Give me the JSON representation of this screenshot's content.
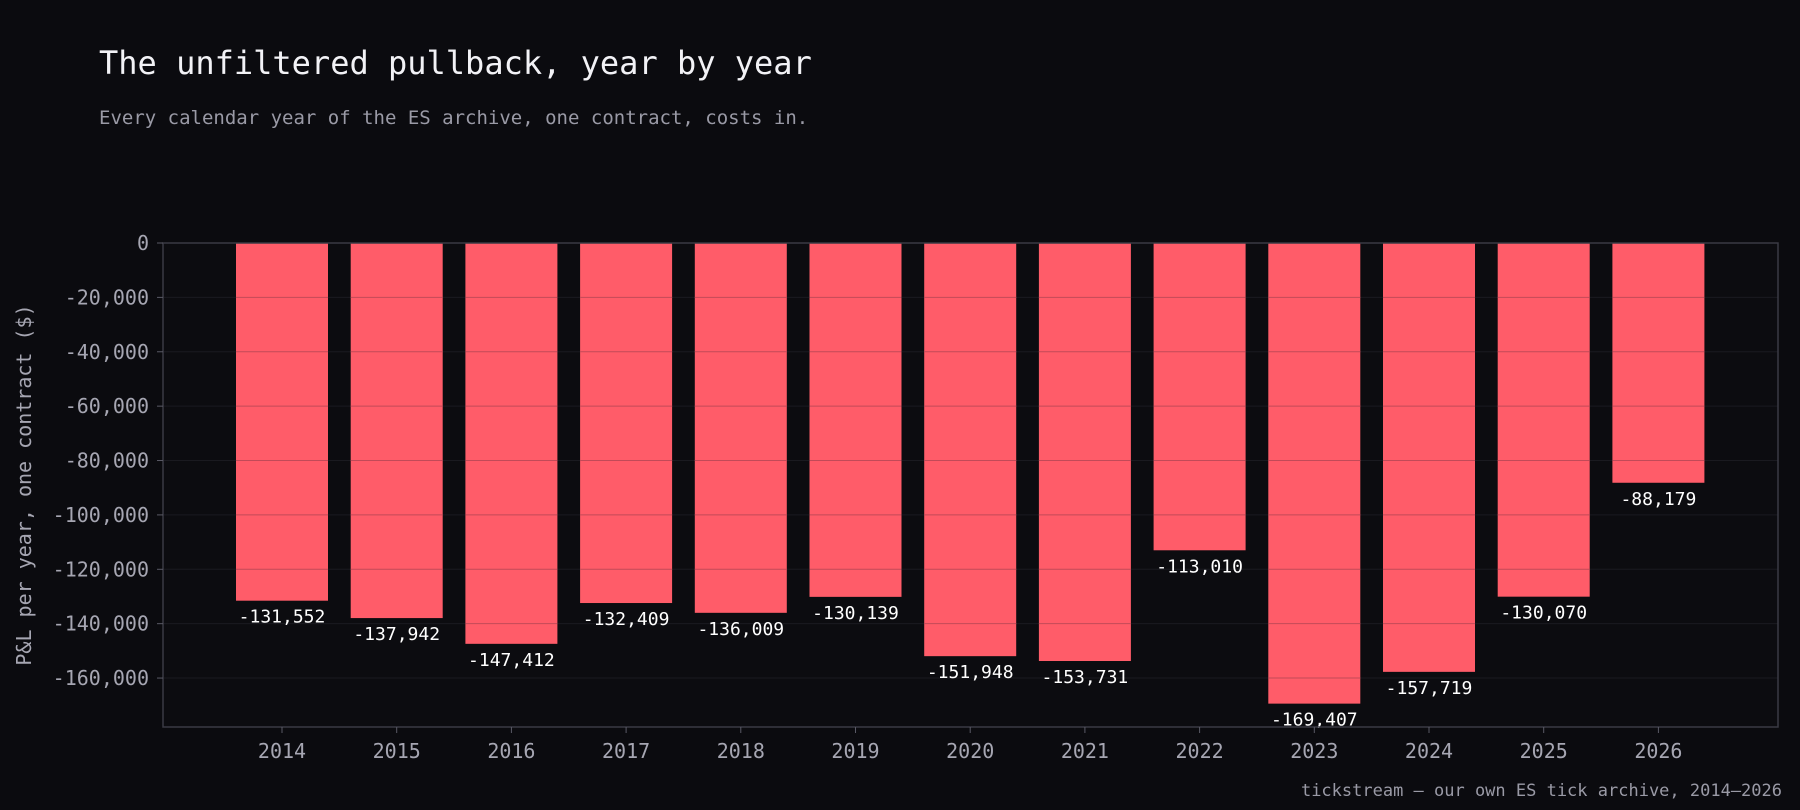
{
  "header": {
    "title": "The unfiltered pullback, year by year",
    "subtitle": "Every calendar year of the ES archive, one contract, costs in."
  },
  "footer": {
    "source": "tickstream — our own ES tick archive, 2014–2026"
  },
  "colors": {
    "background": "#0b0b0f",
    "bar": "#ff5c69",
    "grid": "#5a5a66"
  },
  "chart_data": {
    "type": "bar",
    "title": "The unfiltered pullback, year by year",
    "subtitle": "Every calendar year of the ES archive, one contract, costs in.",
    "xlabel": "",
    "ylabel": "P&L per year, one contract ($)",
    "categories": [
      "2014",
      "2015",
      "2016",
      "2017",
      "2018",
      "2019",
      "2020",
      "2021",
      "2022",
      "2023",
      "2024",
      "2025",
      "2026"
    ],
    "values": [
      -131552,
      -137942,
      -147412,
      -132409,
      -136009,
      -130139,
      -151948,
      -153731,
      -113010,
      -169407,
      -157719,
      -130070,
      -88179
    ],
    "data_labels": [
      "-131,552",
      "-137,942",
      "-147,412",
      "-132,409",
      "-136,009",
      "-130,139",
      "-151,948",
      "-153,731",
      "-113,010",
      "-169,407",
      "-157,719",
      "-130,070",
      "-88,179"
    ],
    "yticks": [
      0,
      -20000,
      -40000,
      -60000,
      -80000,
      -100000,
      -120000,
      -140000,
      -160000
    ],
    "ytick_labels": [
      "0",
      "-20,000",
      "-40,000",
      "-60,000",
      "-80,000",
      "-100,000",
      "-120,000",
      "-140,000",
      "-160,000"
    ],
    "ylim": [
      -178000,
      0
    ],
    "grid": true,
    "legend": "none"
  }
}
